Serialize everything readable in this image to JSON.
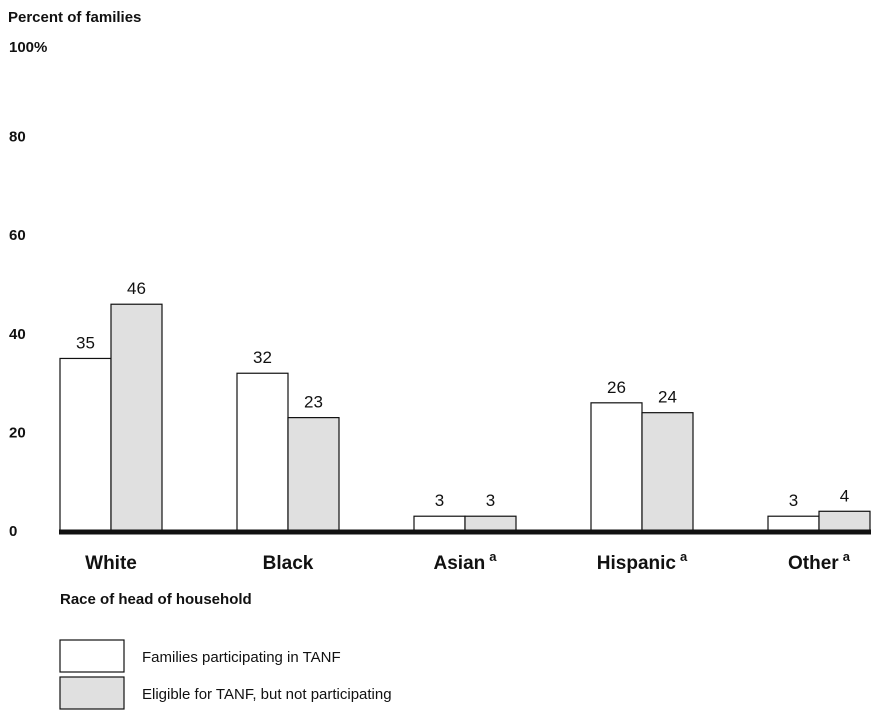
{
  "chart_data": {
    "type": "bar",
    "ylabel": "Percent of families",
    "xlabel": "Race of head of household",
    "ylim": [
      0,
      100
    ],
    "yticks": [
      "0",
      "20",
      "40",
      "60",
      "80",
      "100%"
    ],
    "categories": [
      "White",
      "Black",
      "Asian",
      "Hispanic",
      "Other"
    ],
    "category_superscripts": [
      "",
      "",
      "a",
      "a",
      "a"
    ],
    "series": [
      {
        "name": "Families participating in TANF",
        "values": [
          35,
          32,
          3,
          26,
          3
        ],
        "color": "#ffffff"
      },
      {
        "name": "Eligible for TANF, but not participating",
        "values": [
          46,
          23,
          3,
          24,
          4
        ],
        "color": "#e0e0e0"
      }
    ],
    "data_labels": [
      [
        "35",
        "32",
        "3",
        "26",
        "3"
      ],
      [
        "46",
        "23",
        "3",
        "24",
        "4"
      ]
    ],
    "grid": false,
    "legend_position": "bottom-left"
  }
}
